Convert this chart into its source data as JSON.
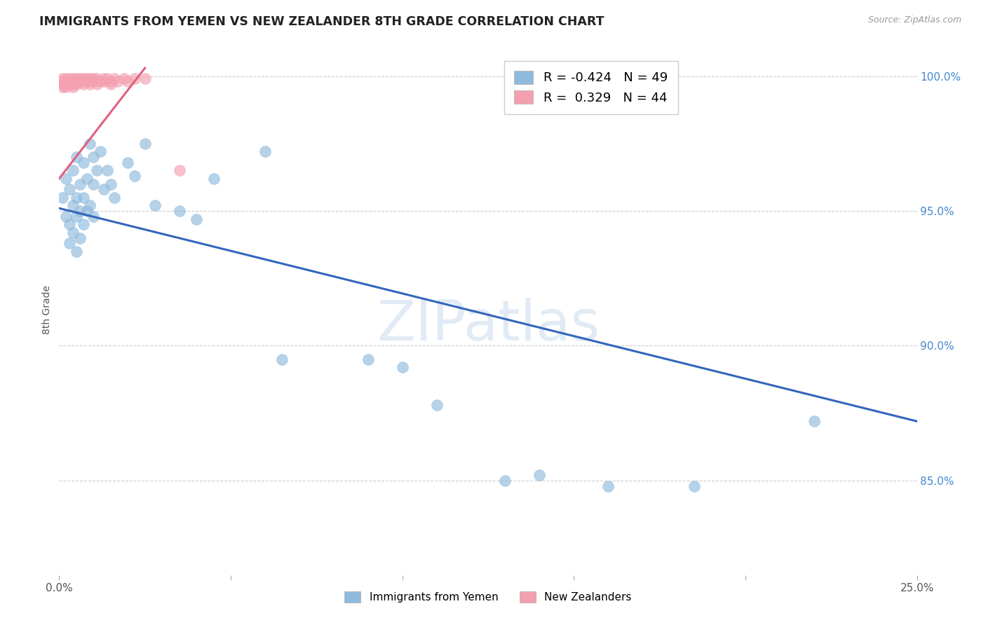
{
  "title": "IMMIGRANTS FROM YEMEN VS NEW ZEALANDER 8TH GRADE CORRELATION CHART",
  "source": "Source: ZipAtlas.com",
  "ylabel": "8th Grade",
  "xlim": [
    0.0,
    0.25
  ],
  "ylim": [
    0.815,
    1.012
  ],
  "ytick_vals": [
    0.85,
    0.9,
    0.95,
    1.0
  ],
  "ytick_labels": [
    "85.0%",
    "90.0%",
    "95.0%",
    "100.0%"
  ],
  "legend_blue_r": "-0.424",
  "legend_blue_n": "49",
  "legend_pink_r": "0.329",
  "legend_pink_n": "44",
  "blue_color": "#8FBADC",
  "pink_color": "#F4A0B0",
  "blue_line_color": "#3366BB",
  "pink_line_color": "#E06080",
  "watermark": "ZIPatlas",
  "watermark_color": "#C5D8EE",
  "blue_trendline": [
    [
      0.0,
      0.951
    ],
    [
      0.25,
      0.872
    ]
  ],
  "pink_trendline": [
    [
      0.0,
      0.962
    ],
    [
      0.025,
      1.003
    ]
  ],
  "blue_scatter": [
    [
      0.001,
      0.955
    ],
    [
      0.002,
      0.962
    ],
    [
      0.002,
      0.948
    ],
    [
      0.003,
      0.958
    ],
    [
      0.003,
      0.945
    ],
    [
      0.003,
      0.938
    ],
    [
      0.004,
      0.965
    ],
    [
      0.004,
      0.952
    ],
    [
      0.004,
      0.942
    ],
    [
      0.005,
      0.97
    ],
    [
      0.005,
      0.955
    ],
    [
      0.005,
      0.948
    ],
    [
      0.005,
      0.935
    ],
    [
      0.006,
      0.96
    ],
    [
      0.006,
      0.95
    ],
    [
      0.006,
      0.94
    ],
    [
      0.007,
      0.968
    ],
    [
      0.007,
      0.955
    ],
    [
      0.007,
      0.945
    ],
    [
      0.008,
      0.962
    ],
    [
      0.008,
      0.95
    ],
    [
      0.009,
      0.975
    ],
    [
      0.009,
      0.952
    ],
    [
      0.01,
      0.97
    ],
    [
      0.01,
      0.96
    ],
    [
      0.01,
      0.948
    ],
    [
      0.011,
      0.965
    ],
    [
      0.012,
      0.972
    ],
    [
      0.013,
      0.958
    ],
    [
      0.014,
      0.965
    ],
    [
      0.015,
      0.96
    ],
    [
      0.016,
      0.955
    ],
    [
      0.02,
      0.968
    ],
    [
      0.022,
      0.963
    ],
    [
      0.025,
      0.975
    ],
    [
      0.028,
      0.952
    ],
    [
      0.035,
      0.95
    ],
    [
      0.04,
      0.947
    ],
    [
      0.045,
      0.962
    ],
    [
      0.06,
      0.972
    ],
    [
      0.065,
      0.895
    ],
    [
      0.09,
      0.895
    ],
    [
      0.1,
      0.892
    ],
    [
      0.11,
      0.878
    ],
    [
      0.13,
      0.85
    ],
    [
      0.14,
      0.852
    ],
    [
      0.16,
      0.848
    ],
    [
      0.185,
      0.848
    ],
    [
      0.22,
      0.872
    ]
  ],
  "pink_scatter": [
    [
      0.001,
      0.999
    ],
    [
      0.001,
      0.998
    ],
    [
      0.001,
      0.997
    ],
    [
      0.001,
      0.996
    ],
    [
      0.002,
      0.999
    ],
    [
      0.002,
      0.998
    ],
    [
      0.002,
      0.997
    ],
    [
      0.002,
      0.996
    ],
    [
      0.003,
      0.999
    ],
    [
      0.003,
      0.998
    ],
    [
      0.003,
      0.997
    ],
    [
      0.004,
      0.999
    ],
    [
      0.004,
      0.998
    ],
    [
      0.004,
      0.997
    ],
    [
      0.004,
      0.996
    ],
    [
      0.005,
      0.999
    ],
    [
      0.005,
      0.998
    ],
    [
      0.005,
      0.997
    ],
    [
      0.006,
      0.999
    ],
    [
      0.006,
      0.998
    ],
    [
      0.007,
      0.999
    ],
    [
      0.007,
      0.998
    ],
    [
      0.007,
      0.997
    ],
    [
      0.008,
      0.999
    ],
    [
      0.008,
      0.998
    ],
    [
      0.009,
      0.999
    ],
    [
      0.009,
      0.997
    ],
    [
      0.01,
      0.999
    ],
    [
      0.01,
      0.998
    ],
    [
      0.011,
      0.999
    ],
    [
      0.011,
      0.997
    ],
    [
      0.012,
      0.998
    ],
    [
      0.013,
      0.999
    ],
    [
      0.013,
      0.998
    ],
    [
      0.014,
      0.999
    ],
    [
      0.015,
      0.998
    ],
    [
      0.015,
      0.997
    ],
    [
      0.016,
      0.999
    ],
    [
      0.017,
      0.998
    ],
    [
      0.019,
      0.999
    ],
    [
      0.02,
      0.998
    ],
    [
      0.022,
      0.999
    ],
    [
      0.025,
      0.999
    ],
    [
      0.035,
      0.965
    ]
  ]
}
